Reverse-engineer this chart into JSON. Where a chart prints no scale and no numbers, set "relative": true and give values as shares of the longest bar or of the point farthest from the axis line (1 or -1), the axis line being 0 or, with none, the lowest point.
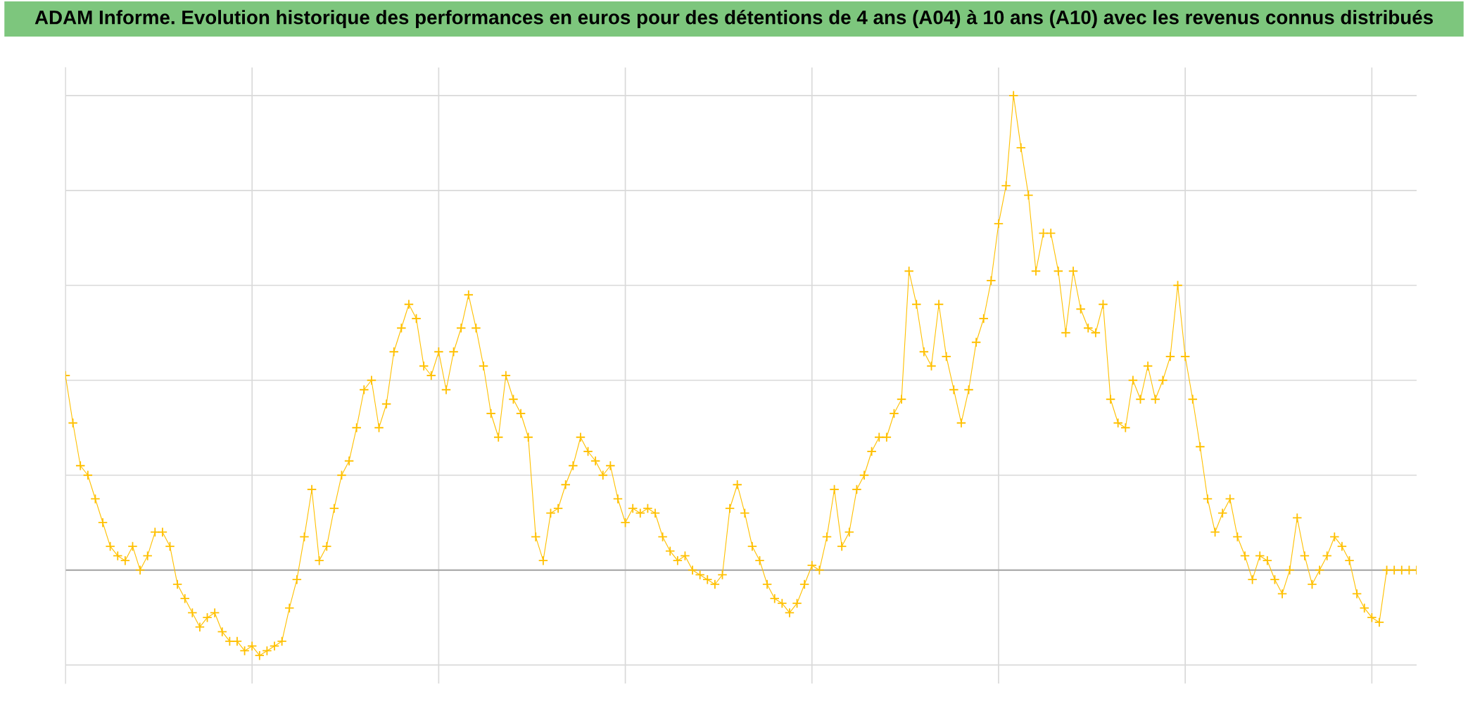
{
  "chart_data": {
    "type": "line",
    "title": "ADAM Informe. Evolution historique des performances en euros pour des détentions de 4 ans (A04) à 10 ans (A10) avec les revenus connus distribués",
    "relative": true,
    "marker": "cross",
    "grid": true,
    "tick_labels": false,
    "categories": [
      null,
      null,
      null,
      null,
      null,
      null,
      null,
      null,
      null,
      null,
      null,
      null,
      null,
      null,
      null,
      null,
      null,
      null,
      null,
      null,
      null,
      null,
      null,
      null,
      null,
      null,
      null,
      null,
      null,
      null,
      null,
      null,
      null,
      null,
      null,
      null,
      null,
      null,
      null,
      null,
      null,
      null,
      null,
      null,
      null,
      null,
      null,
      null,
      null,
      null,
      null,
      null,
      null,
      null,
      null,
      null,
      null,
      null,
      null,
      null,
      null,
      null,
      null,
      null,
      null,
      null,
      null,
      null,
      null,
      null,
      null,
      null,
      null,
      null,
      null,
      null,
      null,
      null,
      null,
      null,
      null,
      null,
      null,
      null,
      null,
      null,
      null,
      null,
      null,
      null,
      null,
      null,
      null,
      null,
      null,
      null,
      null,
      null,
      null,
      null,
      null,
      null,
      null,
      null,
      null,
      null,
      null,
      null,
      null,
      null,
      null,
      null,
      null,
      null,
      null,
      null,
      null,
      null,
      null,
      null,
      null,
      null,
      null,
      null,
      null,
      null,
      null,
      null,
      null,
      null,
      null,
      null,
      null,
      null,
      null,
      null,
      null,
      null,
      null,
      null,
      null,
      null,
      null,
      null,
      null,
      null,
      null,
      null,
      null,
      null,
      null,
      null,
      null,
      null,
      null,
      null,
      null,
      null,
      null,
      null,
      null,
      null,
      null,
      null,
      null,
      null,
      null,
      null,
      null,
      null,
      null,
      null,
      null,
      null,
      null,
      null,
      null,
      null,
      null,
      null,
      null,
      null
    ],
    "series": [
      {
        "color": "#ffc000",
        "values": [
          0.41,
          0.31,
          0.22,
          0.2,
          0.15,
          0.1,
          0.05,
          0.03,
          0.02,
          0.05,
          0.0,
          0.03,
          0.08,
          0.08,
          0.05,
          -0.03,
          -0.06,
          -0.09,
          -0.12,
          -0.1,
          -0.09,
          -0.13,
          -0.15,
          -0.15,
          -0.17,
          -0.16,
          -0.18,
          -0.17,
          -0.16,
          -0.15,
          -0.08,
          -0.02,
          0.07,
          0.17,
          0.02,
          0.05,
          0.13,
          0.2,
          0.23,
          0.3,
          0.38,
          0.4,
          0.3,
          0.35,
          0.46,
          0.51,
          0.56,
          0.53,
          0.43,
          0.41,
          0.46,
          0.38,
          0.46,
          0.51,
          0.58,
          0.51,
          0.43,
          0.33,
          0.28,
          0.41,
          0.36,
          0.33,
          0.28,
          0.07,
          0.02,
          0.12,
          0.13,
          0.18,
          0.22,
          0.28,
          0.25,
          0.23,
          0.2,
          0.22,
          0.15,
          0.1,
          0.13,
          0.12,
          0.13,
          0.12,
          0.07,
          0.04,
          0.02,
          0.03,
          0.0,
          -0.01,
          -0.02,
          -0.03,
          -0.01,
          0.13,
          0.18,
          0.12,
          0.05,
          0.02,
          -0.03,
          -0.06,
          -0.07,
          -0.09,
          -0.07,
          -0.03,
          0.01,
          0.0,
          0.07,
          0.17,
          0.05,
          0.08,
          0.17,
          0.2,
          0.25,
          0.28,
          0.28,
          0.33,
          0.36,
          0.63,
          0.56,
          0.46,
          0.43,
          0.56,
          0.45,
          0.38,
          0.31,
          0.38,
          0.48,
          0.53,
          0.61,
          0.73,
          0.81,
          1.0,
          0.89,
          0.79,
          0.63,
          0.71,
          0.71,
          0.63,
          0.5,
          0.63,
          0.55,
          0.51,
          0.5,
          0.56,
          0.36,
          0.31,
          0.3,
          0.4,
          0.36,
          0.43,
          0.36,
          0.4,
          0.45,
          0.6,
          0.45,
          0.36,
          0.26,
          0.15,
          0.08,
          0.12,
          0.15,
          0.07,
          0.03,
          -0.02,
          0.03,
          0.02,
          -0.02,
          -0.05,
          0.0,
          0.11,
          0.03,
          -0.03,
          0.0,
          0.03,
          0.07,
          0.05,
          0.02,
          -0.05,
          -0.08,
          -0.1,
          -0.11,
          0.0,
          0.0,
          0.0,
          0.0,
          0.0
        ]
      }
    ]
  }
}
